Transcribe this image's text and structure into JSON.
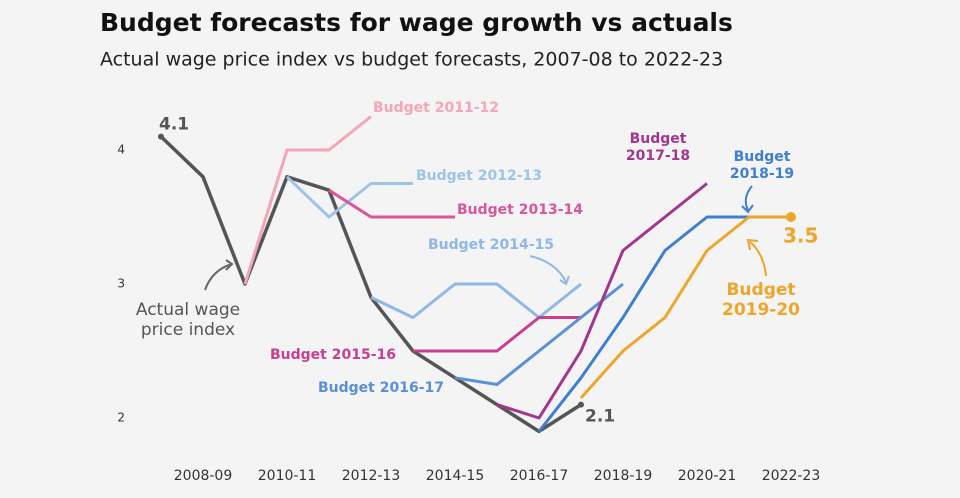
{
  "chart_data": {
    "type": "line",
    "title": "Budget forecasts for wage growth vs actuals",
    "subtitle": "Actual wage price index vs budget forecasts, 2007-08 to 2022-23",
    "categories": [
      null,
      "2008-09",
      null,
      "2010-11",
      null,
      "2012-13",
      null,
      "2014-15",
      null,
      "2016-17",
      null,
      "2018-19",
      null,
      "2020-21",
      null,
      "2022-23"
    ],
    "ylim": [
      1.8,
      4.4
    ],
    "yticks": [
      2,
      3,
      4
    ],
    "grid": false,
    "series": [
      {
        "name": "Actual wage price index",
        "color": "#555555",
        "values": [
          4.1,
          3.8,
          3.0,
          3.8,
          3.7,
          2.9,
          2.5,
          2.3,
          2.1,
          1.9,
          2.1,
          null,
          null,
          null,
          null,
          null
        ]
      },
      {
        "name": "Budget 2011-12",
        "color": "#f4a6b8",
        "values": [
          null,
          null,
          3.0,
          4.0,
          4.0,
          4.25,
          null,
          null,
          null,
          null,
          null,
          null,
          null,
          null,
          null,
          null
        ]
      },
      {
        "name": "Budget 2012-13",
        "color": "#9ec3e8",
        "values": [
          null,
          null,
          null,
          3.8,
          3.5,
          3.75,
          3.75,
          null,
          null,
          null,
          null,
          null,
          null,
          null,
          null,
          null
        ]
      },
      {
        "name": "Budget 2013-14",
        "color": "#d9569a",
        "values": [
          null,
          null,
          null,
          null,
          3.7,
          3.5,
          3.5,
          3.5,
          null,
          null,
          null,
          null,
          null,
          null,
          null,
          null
        ]
      },
      {
        "name": "Budget 2014-15",
        "color": "#8fb8e6",
        "values": [
          null,
          null,
          null,
          null,
          null,
          2.9,
          2.75,
          3.0,
          3.0,
          2.75,
          3.0,
          null,
          null,
          null,
          null,
          null
        ]
      },
      {
        "name": "Budget 2015-16",
        "color": "#c93e93",
        "values": [
          null,
          null,
          null,
          null,
          null,
          null,
          2.5,
          2.5,
          2.5,
          2.75,
          2.75,
          null,
          null,
          null,
          null,
          null
        ]
      },
      {
        "name": "Budget 2016-17",
        "color": "#5b8fd6",
        "values": [
          null,
          null,
          null,
          null,
          null,
          null,
          null,
          2.3,
          2.25,
          2.5,
          2.75,
          3.0,
          null,
          null,
          null,
          null
        ]
      },
      {
        "name": "Budget 2017-18",
        "color": "#a3358f",
        "values": [
          null,
          null,
          null,
          null,
          null,
          null,
          null,
          null,
          2.1,
          2.0,
          2.5,
          3.25,
          3.5,
          3.75,
          null,
          null
        ]
      },
      {
        "name": "Budget 2018-19",
        "color": "#3f7fd0",
        "values": [
          null,
          null,
          null,
          null,
          null,
          null,
          null,
          null,
          null,
          1.9,
          2.3,
          2.75,
          3.25,
          3.5,
          3.5,
          null
        ]
      },
      {
        "name": "Budget 2019-20",
        "color": "#eda52a",
        "values": [
          null,
          null,
          null,
          null,
          null,
          null,
          null,
          null,
          null,
          null,
          2.15,
          2.5,
          2.75,
          3.25,
          3.5,
          3.5
        ]
      }
    ]
  }
}
